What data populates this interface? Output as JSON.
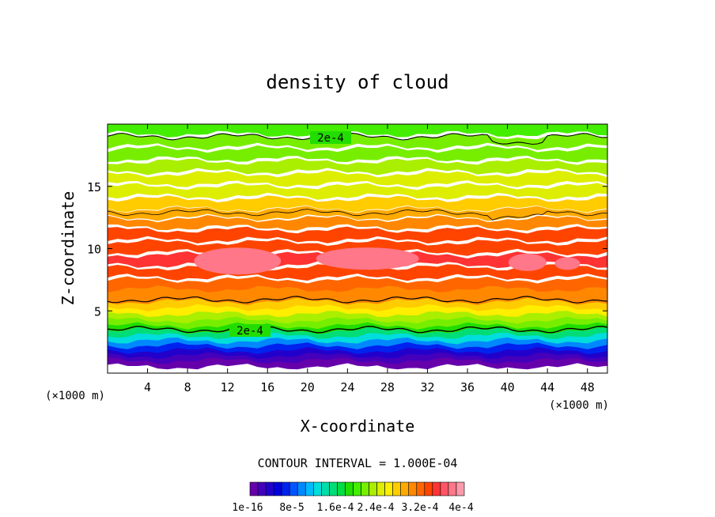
{
  "chart_data": {
    "type": "heatmap",
    "title": "density of cloud",
    "xlabel": "X-coordinate",
    "ylabel": "Z-coordinate",
    "x_unit": "(×1000 m)",
    "y_unit": "(×1000 m)",
    "xlim": [
      0,
      50
    ],
    "ylim": [
      0,
      20
    ],
    "x_ticks": [
      4,
      8,
      12,
      16,
      20,
      24,
      28,
      32,
      36,
      40,
      44,
      48
    ],
    "y_ticks": [
      5,
      10,
      15
    ],
    "contour_interval_text": "CONTOUR INTERVAL = 1.000E-04",
    "contour_labels": [
      "2e-4",
      "2e-4"
    ],
    "colorbar_labels": [
      "1e-16",
      "8e-5",
      "1.6e-4",
      "2.4e-4",
      "3.2e-4",
      "4e-4"
    ],
    "colorbar_range": [
      0,
      0.0004
    ],
    "colorbar_colors": [
      "#6600aa",
      "#4400bb",
      "#2200cc",
      "#0000dd",
      "#0022ee",
      "#0055ff",
      "#0088ff",
      "#00bbff",
      "#00dddd",
      "#00ddaa",
      "#00dd77",
      "#00dd44",
      "#22dd00",
      "#44ee00",
      "#77ee00",
      "#aaee00",
      "#ddee00",
      "#ffee00",
      "#ffcc00",
      "#ffaa00",
      "#ff8800",
      "#ff6600",
      "#ff4400",
      "#ff3333",
      "#ff5566",
      "#ff7788",
      "#ff99aa"
    ],
    "vertical_profile": {
      "z": [
        0.8,
        1.2,
        1.6,
        2.0,
        2.4,
        2.8,
        3.2,
        3.6,
        4.0,
        4.5,
        5.0,
        5.5,
        6.0,
        6.5,
        7.0,
        8.0,
        9.0,
        10.0,
        11.0,
        12.0,
        12.8,
        13.5,
        14.5,
        15.5,
        16.5,
        17.5,
        18.5,
        19.5
      ],
      "density": [
        1e-05,
        2e-05,
        4e-05,
        6e-05,
        9e-05,
        0.00012,
        0.00016,
        0.00019,
        0.00021,
        0.00023,
        0.00026,
        0.00028,
        0.0003,
        0.00031,
        0.00032,
        0.00034,
        0.00035,
        0.00034,
        0.00033,
        0.00031,
        0.00029,
        0.00027,
        0.00025,
        0.00024,
        0.00023,
        0.00022,
        0.00021,
        0.0002
      ]
    }
  }
}
